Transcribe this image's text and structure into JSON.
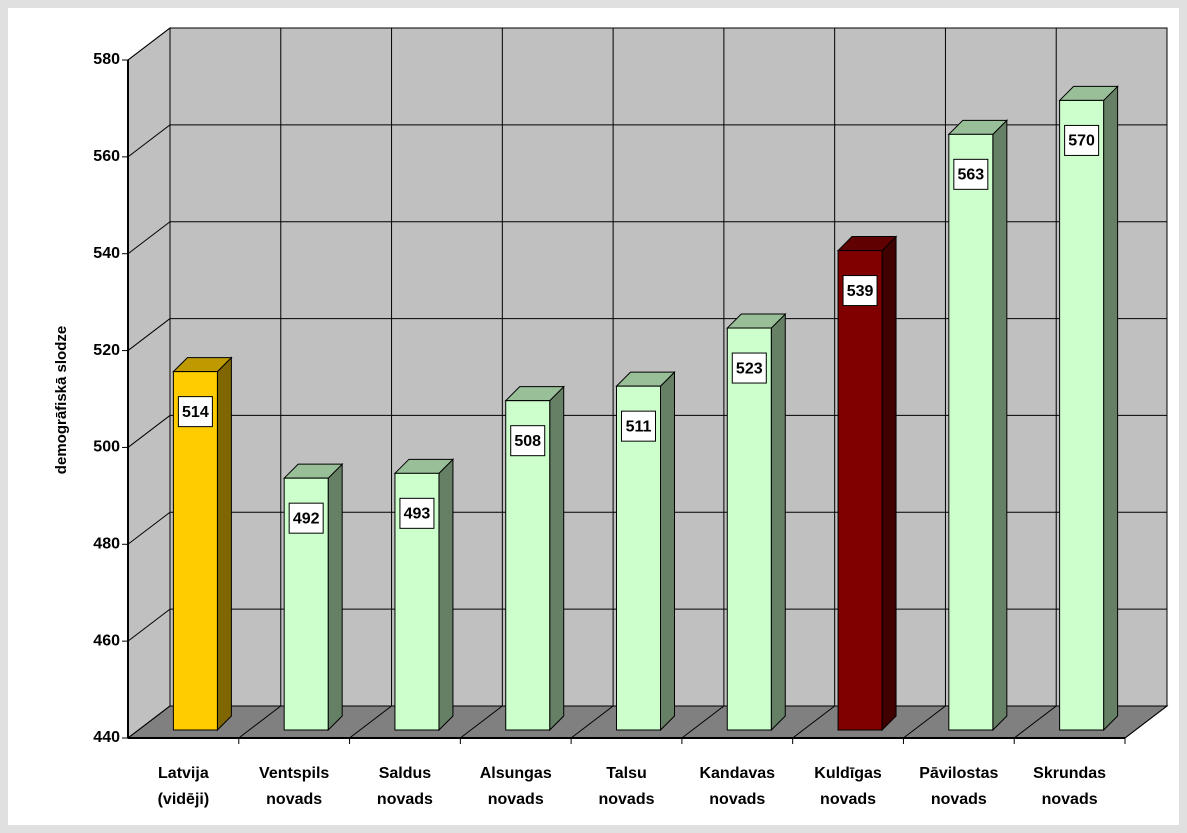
{
  "chart_data": {
    "type": "bar3d",
    "ylabel": "demogrāfiskā slodze",
    "categories": [
      [
        "Latvija",
        "(vidēji)"
      ],
      [
        "Ventspils",
        "novads"
      ],
      [
        "Saldus",
        "novads"
      ],
      [
        "Alsungas",
        "novads"
      ],
      [
        "Talsu",
        "novads"
      ],
      [
        "Kandavas",
        "novads"
      ],
      [
        "Kuldīgas",
        "novads"
      ],
      [
        "Pāvilostas",
        "novads"
      ],
      [
        "Skrundas",
        "novads"
      ]
    ],
    "values": [
      514,
      492,
      493,
      508,
      511,
      523,
      539,
      563,
      570
    ],
    "colors": [
      "#ffcc00",
      "#ccffcc",
      "#ccffcc",
      "#ccffcc",
      "#ccffcc",
      "#ccffcc",
      "#800000",
      "#ccffcc",
      "#ccffcc"
    ],
    "ylim": [
      440,
      580
    ],
    "yticks": [
      440,
      460,
      480,
      500,
      520,
      540,
      560,
      580
    ],
    "grid": true
  }
}
